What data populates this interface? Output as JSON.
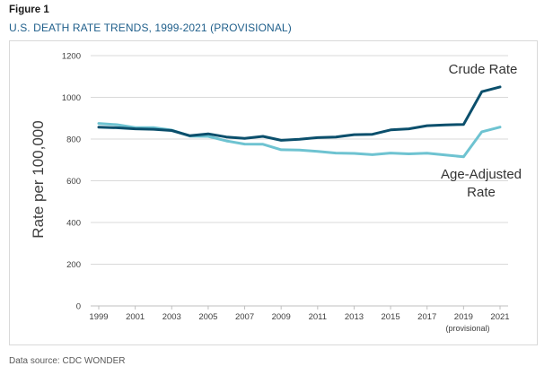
{
  "header": {
    "figure_label": "Figure 1",
    "title": "U.S. DEATH RATE TRENDS, 1999-2021 (PROVISIONAL)"
  },
  "footer": {
    "source": "Data source: CDC WONDER"
  },
  "colors": {
    "crude": "#0b4f6c",
    "age_adjusted": "#6ec3d1",
    "grid": "#d9d9d9",
    "axis": "#bfbfbf"
  },
  "chart_data": {
    "type": "line",
    "title": "U.S. DEATH RATE TRENDS, 1999-2021 (PROVISIONAL)",
    "ylabel": "Rate per 100,000",
    "xlabel": "",
    "ylim": [
      0,
      1200
    ],
    "yticks": [
      0,
      200,
      400,
      600,
      800,
      1000,
      1200
    ],
    "x": [
      1999,
      2000,
      2001,
      2002,
      2003,
      2004,
      2005,
      2006,
      2007,
      2008,
      2009,
      2010,
      2011,
      2012,
      2013,
      2014,
      2015,
      2016,
      2017,
      2018,
      2019,
      2020,
      2021
    ],
    "xticks": [
      1999,
      2001,
      2003,
      2005,
      2007,
      2009,
      2011,
      2013,
      2015,
      2017,
      2019,
      2021
    ],
    "xtick_note": "(provisional)",
    "grid": "horizontal",
    "legend": "none (direct labels)",
    "series": [
      {
        "name": "Crude Rate",
        "label_lines": [
          "Crude Rate"
        ],
        "values": [
          857,
          854,
          849,
          847,
          841,
          816,
          825,
          810,
          803,
          813,
          794,
          799,
          807,
          810,
          821,
          823,
          844,
          849,
          864,
          868,
          870,
          1027,
          1050
        ]
      },
      {
        "name": "Age-Adjusted Rate",
        "label_lines": [
          "Age-Adjusted",
          "Rate"
        ],
        "values": [
          875,
          869,
          855,
          855,
          843,
          814,
          813,
          791,
          776,
          775,
          749,
          747,
          741,
          733,
          731,
          725,
          733,
          729,
          732,
          724,
          715,
          835,
          857
        ]
      }
    ]
  }
}
